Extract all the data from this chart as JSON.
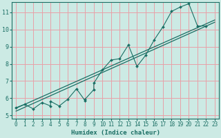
{
  "xlabel": "Humidex (Indice chaleur)",
  "ylabel": "",
  "bg_color": "#cceae4",
  "grid_color": "#e8a0a8",
  "line_color": "#1a6e64",
  "xlim": [
    -0.5,
    23.5
  ],
  "ylim": [
    4.8,
    11.6
  ],
  "xticks": [
    0,
    1,
    2,
    3,
    4,
    5,
    6,
    7,
    8,
    9,
    10,
    11,
    12,
    13,
    14,
    15,
    16,
    17,
    18,
    19,
    20,
    21,
    22,
    23
  ],
  "yticks": [
    5,
    6,
    7,
    8,
    9,
    10,
    11
  ],
  "trend1_x": [
    0,
    23
  ],
  "trend1_y": [
    5.42,
    10.55
  ],
  "trend2_x": [
    0,
    23
  ],
  "trend2_y": [
    5.25,
    10.42
  ],
  "line_x": [
    0,
    1,
    2,
    3,
    4,
    4,
    5,
    6,
    7,
    8,
    8,
    9,
    9,
    10,
    11,
    12,
    13,
    14,
    15,
    16,
    17,
    18,
    19,
    20,
    21,
    22
  ],
  "line_y": [
    5.45,
    5.65,
    5.38,
    5.75,
    5.55,
    5.82,
    5.55,
    5.95,
    6.55,
    5.85,
    5.95,
    6.5,
    6.88,
    7.65,
    8.22,
    8.3,
    9.1,
    7.85,
    8.5,
    9.4,
    10.15,
    11.05,
    11.3,
    11.5,
    10.2,
    10.2
  ]
}
